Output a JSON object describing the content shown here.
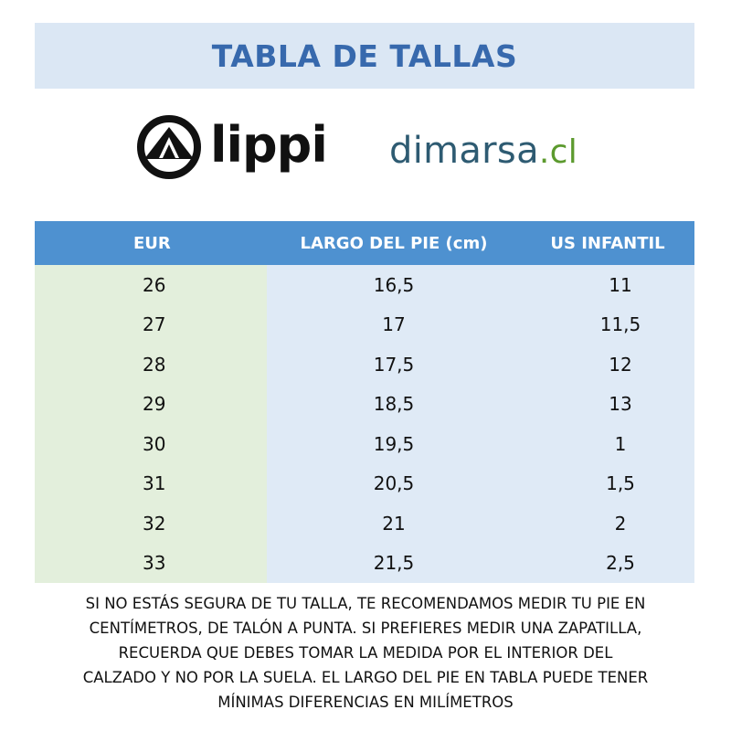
{
  "title": "TABLA DE TALLAS",
  "brands": {
    "lippi": "lippi",
    "dimarsa_main": "dimarsa",
    "dimarsa_suffix": ".cl"
  },
  "table": {
    "headers": [
      "EUR",
      "LARGO DEL PIE (cm)",
      "US INFANTIL"
    ],
    "rows": [
      [
        "26",
        "16,5",
        "11"
      ],
      [
        "27",
        "17",
        "11,5"
      ],
      [
        "28",
        "17,5",
        "12"
      ],
      [
        "29",
        "18,5",
        "13"
      ],
      [
        "30",
        "19,5",
        "1"
      ],
      [
        "31",
        "20,5",
        "1,5"
      ],
      [
        "32",
        "21",
        "2"
      ],
      [
        "33",
        "21,5",
        "2,5"
      ]
    ]
  },
  "note_lines": [
    "SI NO ESTÁS SEGURA DE TU TALLA, TE RECOMENDAMOS MEDIR TU PIE EN",
    "CENTÍMETROS, DE TALÓN A PUNTA. SI PREFIERES MEDIR UNA ZAPATILLA,",
    "RECUERDA QUE DEBES TOMAR LA MEDIDA POR EL INTERIOR DEL",
    "CALZADO Y NO POR LA SUELA. EL LARGO DEL PIE EN TABLA PUEDE TENER",
    "MÍNIMAS DIFERENCIAS EN MILÍMETROS"
  ],
  "colors": {
    "title_text": "#3769ad",
    "title_bg": "#dbe7f4",
    "header_bg": "#4e91d0",
    "eur_col_bg": "#e3efdc",
    "rest_bg": "#dfeaf6"
  }
}
